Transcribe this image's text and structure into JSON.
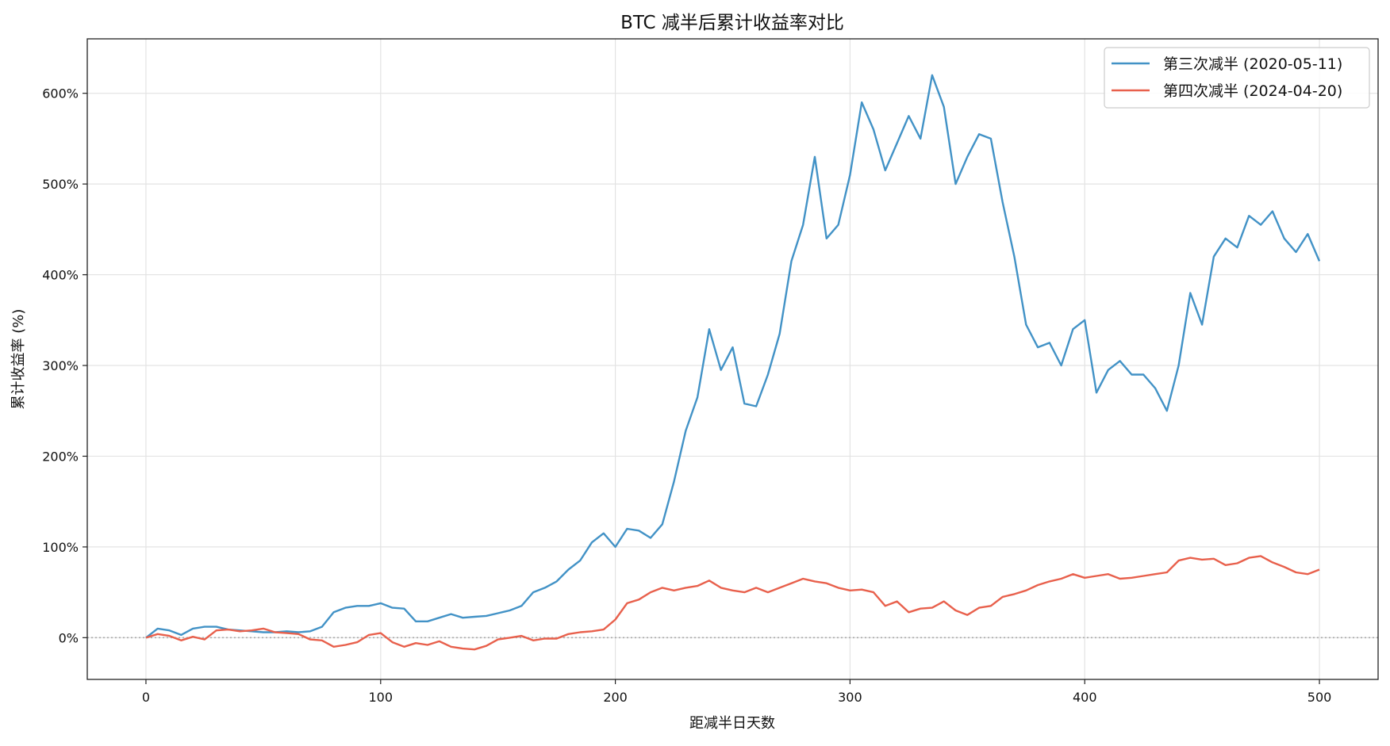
{
  "chart_data": {
    "type": "line",
    "title": "BTC 减半后累计收益率对比",
    "xlabel": "距减半日天数",
    "ylabel": "累计收益率 (%)",
    "xlim": [
      -25,
      525
    ],
    "ylim": [
      -46,
      660
    ],
    "x_ticks": [
      0,
      100,
      200,
      300,
      400,
      500
    ],
    "x_tick_labels": [
      "0",
      "100",
      "200",
      "300",
      "400",
      "500"
    ],
    "y_ticks": [
      0,
      100,
      200,
      300,
      400,
      500,
      600
    ],
    "y_tick_labels": [
      "0%",
      "100%",
      "200%",
      "300%",
      "400%",
      "500%",
      "600%"
    ],
    "grid": true,
    "reference_line": 0,
    "legend_position": "top-right",
    "x_step": 5,
    "series": [
      {
        "name": "第三次减半 (2020-05-11)",
        "color": "#4292c6",
        "values": [
          0,
          10,
          8,
          3,
          10,
          12,
          12,
          9,
          8,
          7,
          6,
          6,
          7,
          6,
          7,
          12,
          28,
          33,
          35,
          35,
          38,
          33,
          32,
          18,
          18,
          22,
          26,
          22,
          23,
          24,
          27,
          30,
          35,
          50,
          55,
          62,
          75,
          85,
          105,
          115,
          100,
          120,
          118,
          110,
          125,
          172,
          228,
          265,
          340,
          295,
          320,
          258,
          255,
          290,
          335,
          415,
          455,
          530,
          440,
          455,
          510,
          590,
          560,
          515,
          545,
          575,
          550,
          620,
          585,
          500,
          530,
          555,
          550,
          480,
          420,
          345,
          320,
          325,
          300,
          340,
          350,
          270,
          295,
          305,
          290,
          290,
          275,
          250,
          300,
          380,
          345,
          420,
          440,
          430,
          465,
          455,
          470,
          440,
          425,
          445,
          415
        ]
      },
      {
        "name": "第四次减半 (2024-04-20)",
        "color": "#e8604c",
        "values": [
          0,
          4,
          2,
          -3,
          1,
          -2,
          8,
          9,
          7,
          8,
          10,
          6,
          5,
          4,
          -2,
          -3,
          -10,
          -8,
          -5,
          3,
          5,
          -5,
          -10,
          -6,
          -8,
          -4,
          -10,
          -12,
          -13,
          -9,
          -2,
          0,
          2,
          -3,
          -1,
          -1,
          4,
          6,
          7,
          9,
          20,
          38,
          42,
          50,
          55,
          52,
          55,
          57,
          63,
          55,
          52,
          50,
          55,
          50,
          55,
          60,
          65,
          62,
          60,
          55,
          52,
          53,
          50,
          35,
          40,
          28,
          32,
          33,
          40,
          30,
          25,
          33,
          35,
          45,
          48,
          52,
          58,
          62,
          65,
          70,
          66,
          68,
          70,
          65,
          66,
          68,
          70,
          72,
          85,
          88,
          86,
          87,
          80,
          82,
          88,
          90,
          83,
          78,
          72,
          70,
          75
        ]
      }
    ]
  }
}
